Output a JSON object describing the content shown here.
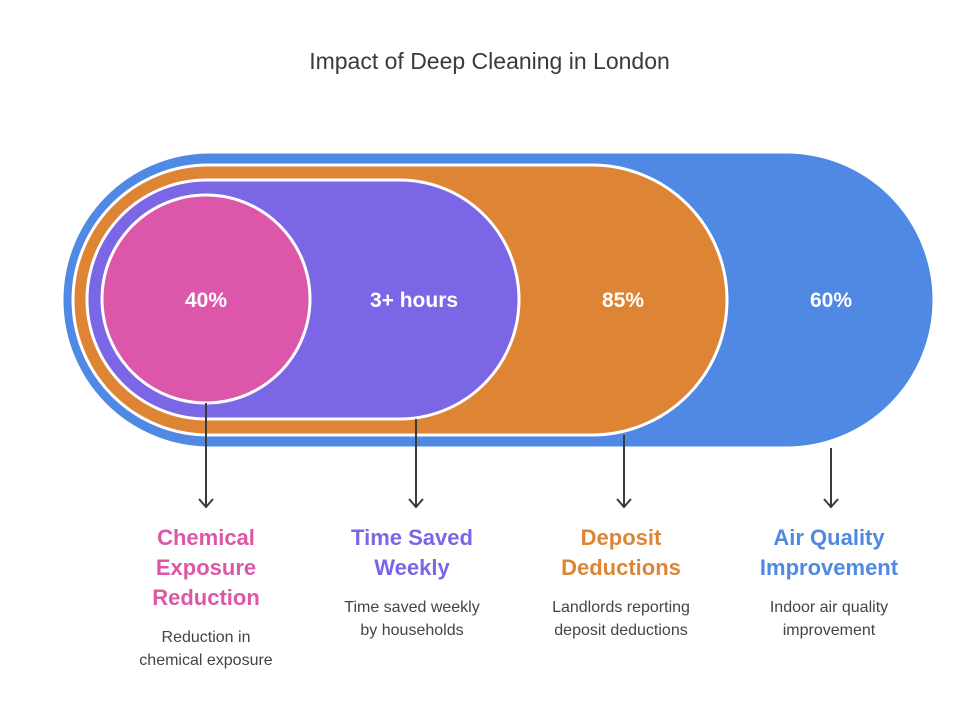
{
  "title": "Impact of Deep Cleaning in London",
  "colors": {
    "air_quality": "#4f89e4",
    "deposit": "#de8535",
    "time_saved": "#7b66e6",
    "chemical": "#dc57a9"
  },
  "segments": [
    {
      "value": "40%",
      "label": "Chemical\nExposure\nReduction",
      "description": "Reduction in\nchemical exposure",
      "color": "#dc57a9"
    },
    {
      "value": "3+ hours",
      "label": "Time Saved\nWeekly",
      "description": "Time saved weekly\nby households",
      "color": "#7b66e6"
    },
    {
      "value": "85%",
      "label": "Deposit\nDeductions",
      "description": "Landlords reporting\ndeposit deductions",
      "color": "#de8535"
    },
    {
      "value": "60%",
      "label": "Air Quality\nImprovement",
      "description": "Indoor air quality\nimprovement",
      "color": "#4f89e4"
    }
  ]
}
